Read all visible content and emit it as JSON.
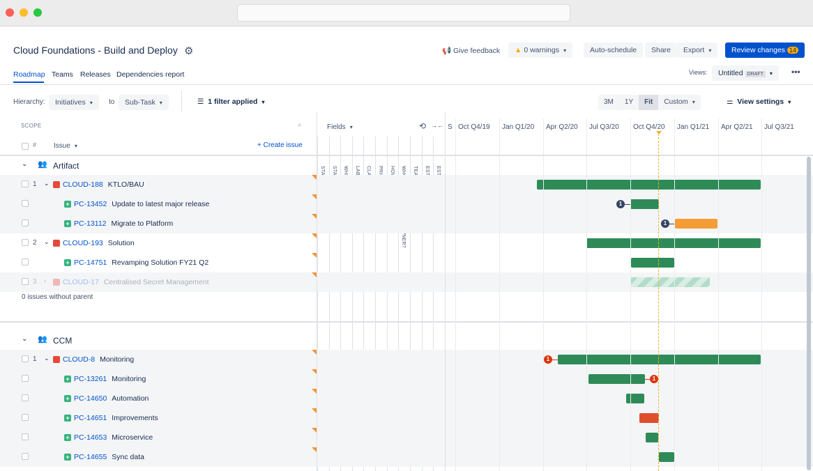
{
  "window": {
    "traffic_colors": [
      "#fe5f57",
      "#febc2e",
      "#28c840"
    ]
  },
  "header": {
    "title": "Cloud Foundations - Build and Deploy",
    "feedback": "Give feedback",
    "warnings": "0 warnings",
    "auto_schedule": "Auto-schedule",
    "share": "Share",
    "export": "Export",
    "review": "Review changes",
    "review_count": "14"
  },
  "tabs": [
    "Roadmap",
    "Teams",
    "Releases",
    "Dependencies report"
  ],
  "views": {
    "label": "Views:",
    "name": "Untitled",
    "badge": "DRAFT"
  },
  "toolbar": {
    "hierarchy_label": "Hierarchy:",
    "from": "Initiatives",
    "to_label": "to",
    "to": "Sub-Task",
    "filter": "1 filter applied",
    "zoom_options": [
      "3M",
      "1Y",
      "Fit",
      "Custom"
    ],
    "zoom_selected": "Fit",
    "view_settings": "View settings"
  },
  "scope": {
    "label": "SCOPE",
    "hash": "#",
    "issue": "Issue",
    "create": "+ Create issue",
    "fields": "Fields"
  },
  "fields": [
    "STATUS",
    "START DATE",
    "WHEN WILL IT SHIP?",
    "LABELS",
    "CLARITY",
    "PRIORITY",
    "HOW ARE WE TRACKING?",
    "WHO IS THE FULL-TIME OWNER?",
    "TEAM",
    "ESTIMATE (IC MONTHS)",
    "ESTIMATES (D)"
  ],
  "field_badge": "D",
  "timeline": {
    "first": "S",
    "quarters": [
      "Oct Q4/19",
      "Jan Q1/20",
      "Apr Q2/20",
      "Jul Q3/20",
      "Oct Q4/20",
      "Jan Q1/21",
      "Apr Q2/21",
      "Jul Q3/21"
    ]
  },
  "groups": [
    {
      "name": "Artifact",
      "rows": [
        {
          "num": "1",
          "type": "epic",
          "key": "CLOUD-188",
          "summary": "KTLO/BAU",
          "status": "green"
        },
        {
          "type": "story",
          "key": "PC-13452",
          "summary": "Update to latest major release",
          "status": "green",
          "badge": "1"
        },
        {
          "type": "story",
          "key": "PC-13112",
          "summary": "Migrate to Platform",
          "status": "orange",
          "badge": "1"
        },
        {
          "num": "2",
          "type": "epic",
          "key": "CLOUD-193",
          "summary": "Solution",
          "status": "green"
        },
        {
          "type": "story",
          "key": "PC-14751",
          "summary": "Revamping Solution FY21 Q2",
          "status": "green"
        },
        {
          "num": "3",
          "type": "epic",
          "key": "CLOUD-17",
          "summary": "Centralised Secret Management",
          "status": "striped",
          "faded": true
        }
      ],
      "orphans": "0 issues without parent"
    },
    {
      "name": "CCM",
      "rows": [
        {
          "num": "1",
          "type": "epic",
          "key": "CLOUD-8",
          "summary": "Monitoring",
          "status": "green",
          "badge": "1"
        },
        {
          "type": "story",
          "key": "PC-13261",
          "summary": "Monitoring",
          "status": "green",
          "badge": "1"
        },
        {
          "type": "story",
          "key": "PC-14650",
          "summary": "Automation",
          "status": "green"
        },
        {
          "type": "story",
          "key": "PC-14651",
          "summary": "Improvements",
          "status": "red"
        },
        {
          "type": "story",
          "key": "PC-14653",
          "summary": "Microservice",
          "status": "green"
        },
        {
          "type": "story",
          "key": "PC-14655",
          "summary": "Sync data",
          "status": "green"
        }
      ]
    }
  ],
  "colors": {
    "primary": "#0052cc",
    "green": "#2e8b57",
    "orange": "#f49d37",
    "red": "#de4f2c",
    "today": "#f0b429",
    "badge_dark": "#344563",
    "badge_red": "#de350b"
  }
}
